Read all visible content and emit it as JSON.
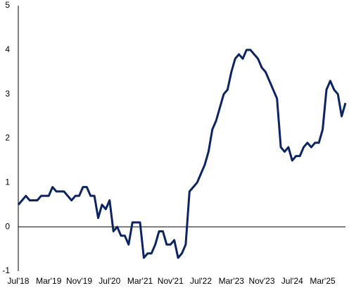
{
  "chart_data": {
    "type": "line",
    "categories": [
      "Jul'18",
      null,
      null,
      null,
      null,
      null,
      null,
      null,
      "Mar'19",
      null,
      null,
      null,
      null,
      null,
      null,
      null,
      "Nov'19",
      null,
      null,
      null,
      null,
      null,
      null,
      null,
      "Jul'20",
      null,
      null,
      null,
      null,
      null,
      null,
      null,
      "Mar'21",
      null,
      null,
      null,
      null,
      null,
      null,
      null,
      "Nov'21",
      null,
      null,
      null,
      null,
      null,
      null,
      null,
      "Jul'22",
      null,
      null,
      null,
      null,
      null,
      null,
      null,
      "Mar'23",
      null,
      null,
      null,
      null,
      null,
      null,
      null,
      "Nov'23",
      null,
      null,
      null,
      null,
      null,
      null,
      null,
      "Jul'24",
      null,
      null,
      null,
      null,
      null,
      null,
      null,
      "Mar'25",
      null,
      null,
      null,
      null,
      null,
      null
    ],
    "series": [
      {
        "color": "#0c2461",
        "values": [
          0.5,
          0.6,
          0.7,
          0.6,
          0.6,
          0.6,
          0.7,
          0.7,
          0.7,
          0.9,
          0.8,
          0.8,
          0.8,
          0.7,
          0.6,
          0.7,
          0.7,
          0.9,
          0.9,
          0.7,
          0.7,
          0.2,
          0.5,
          0.4,
          0.6,
          -0.1,
          0.0,
          -0.2,
          -0.2,
          -0.4,
          0.1,
          0.1,
          0.1,
          -0.7,
          -0.6,
          -0.6,
          -0.4,
          -0.1,
          -0.1,
          -0.4,
          -0.4,
          -0.3,
          -0.7,
          -0.6,
          -0.4,
          0.8,
          0.9,
          1.0,
          1.2,
          1.4,
          1.7,
          2.2,
          2.4,
          2.7,
          3.0,
          3.1,
          3.5,
          3.8,
          3.9,
          3.8,
          4.0,
          4.0,
          3.9,
          3.8,
          3.6,
          3.5,
          3.3,
          3.1,
          2.9,
          1.8,
          1.7,
          1.8,
          1.5,
          1.6,
          1.6,
          1.8,
          1.9,
          1.8,
          1.9,
          1.9,
          2.2,
          3.1,
          3.3,
          3.1,
          3.0,
          2.5,
          2.8
        ]
      }
    ],
    "ylim": [
      -1,
      5
    ],
    "yticks": [
      -1,
      0,
      1,
      2,
      3,
      4,
      5
    ],
    "grid": false
  }
}
